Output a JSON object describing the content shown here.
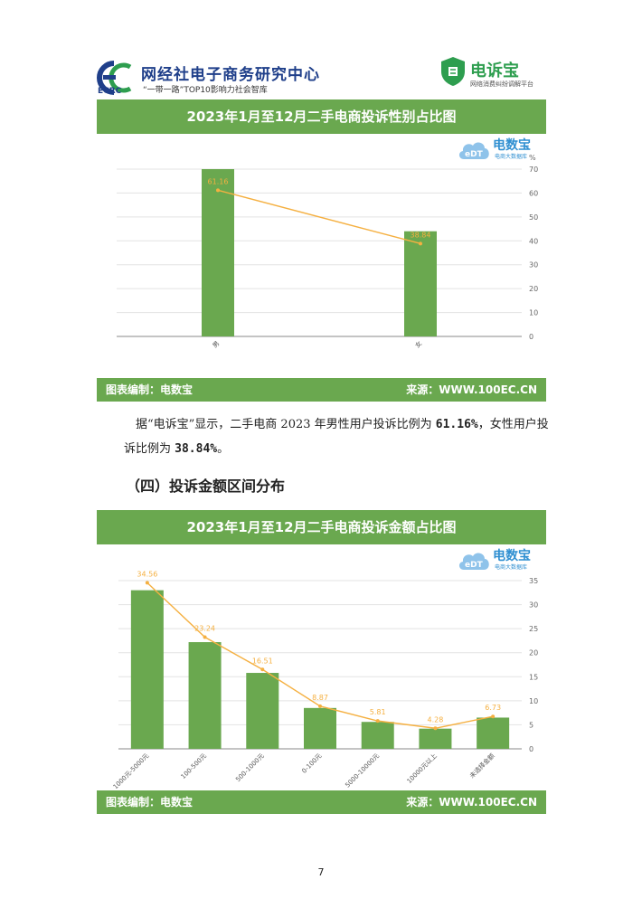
{
  "header": {
    "org_name": "网经社电子商务研究中心",
    "org_slogan": "“一带一路”TOP10影响力社会智库",
    "ecrc_label": "ECRC",
    "dsb_name": "电诉宝",
    "dsb_sub": "网络消费纠纷调解平台"
  },
  "watermark": {
    "name": "电数宝",
    "sub": "电商大数据库"
  },
  "chart1": {
    "header_title": "2023年1月至12月二手电商投诉性别占比图",
    "footer_left": "图表编制：电数宝",
    "footer_right": "来源：WWW.100EC.CN"
  },
  "chart2": {
    "header_title": "2023年1月至12月二手电商投诉金额占比图",
    "footer_left": "图表编制：电数宝",
    "footer_right": "来源：WWW.100EC.CN"
  },
  "paragraph": {
    "p1": "据“电诉宝”显示，二手电商 2023 年男性用户投诉比例为 ",
    "v1": "61.16%",
    "p2": "，女性用户投诉比例为 ",
    "v2": "38.84%",
    "p3": "。"
  },
  "section_title": "（四）投诉金额区间分布",
  "page_number": "7",
  "colors": {
    "bar": "#6aa84f",
    "line": "#f5b041",
    "header": "#6aa84f"
  },
  "chart_data": [
    {
      "type": "bar",
      "title": "2023年1月至12月二手电商投诉性别占比图",
      "categories": [
        "男",
        "女"
      ],
      "series": [
        {
          "values": [
            70,
            44
          ]
        },
        {
          "values": [
            61.16,
            38.84
          ]
        }
      ],
      "y_axis_unit": "%",
      "ylim": [
        0,
        70
      ],
      "yticks": [
        0,
        10,
        20,
        30,
        40,
        50,
        60,
        70
      ],
      "y_axis_side": "right",
      "grid": true
    },
    {
      "type": "bar",
      "title": "2023年1月至12月二手电商投诉金额占比图",
      "categories": [
        "1000元-5000元",
        "100-500元",
        "500-1000元",
        "0-100元",
        "5000-10000元",
        "10000元以上",
        "未选择金额"
      ],
      "series": [
        {
          "values": [
            33,
            22.2,
            15.8,
            8.5,
            5.6,
            4.2,
            6.5
          ]
        },
        {
          "values": [
            34.56,
            23.24,
            16.51,
            8.87,
            5.81,
            4.28,
            6.73
          ]
        }
      ],
      "ylim": [
        0,
        35
      ],
      "yticks": [
        0,
        5,
        10,
        15,
        20,
        25,
        30,
        35
      ],
      "y_axis_side": "right",
      "grid": true
    }
  ]
}
